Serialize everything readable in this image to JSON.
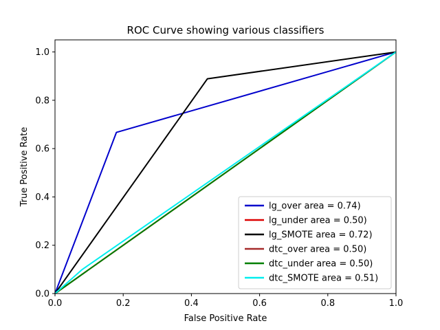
{
  "chart_data": {
    "type": "line",
    "title": "ROC Curve showing various classifiers",
    "xlabel": "False Positive Rate",
    "ylabel": "True Positive Rate",
    "xlim": [
      0.0,
      1.0
    ],
    "ylim": [
      0.0,
      1.05
    ],
    "xticks": [
      "0.0",
      "0.2",
      "0.4",
      "0.6",
      "0.8",
      "1.0"
    ],
    "yticks": [
      "0.0",
      "0.2",
      "0.4",
      "0.6",
      "0.8",
      "1.0"
    ],
    "grid": false,
    "legend_position": "lower-right",
    "series": [
      {
        "name": "lg_over area = 0.74)",
        "color": "#0000cc",
        "points": [
          [
            0.0,
            0.0
          ],
          [
            0.18,
            0.667
          ],
          [
            1.0,
            1.0
          ]
        ]
      },
      {
        "name": "lg_under area = 0.50)",
        "color": "#dd0000",
        "points": [
          [
            0.0,
            0.0
          ],
          [
            1.0,
            1.0
          ]
        ]
      },
      {
        "name": "lg_SMOTE area = 0.72)",
        "color": "#000000",
        "points": [
          [
            0.0,
            0.0
          ],
          [
            0.447,
            0.889
          ],
          [
            1.0,
            1.0
          ]
        ]
      },
      {
        "name": "dtc_over area = 0.50)",
        "color": "#a52a2a",
        "points": [
          [
            0.0,
            0.0
          ],
          [
            1.0,
            1.0
          ]
        ]
      },
      {
        "name": "dtc_under area = 0.50)",
        "color": "#007f00",
        "points": [
          [
            0.0,
            0.0
          ],
          [
            1.0,
            1.0
          ]
        ]
      },
      {
        "name": "dtc_SMOTE area = 0.51)",
        "color": "#00eeee",
        "points": [
          [
            0.0,
            0.0
          ],
          [
            0.08,
            0.1
          ],
          [
            1.0,
            1.0
          ]
        ]
      }
    ]
  }
}
